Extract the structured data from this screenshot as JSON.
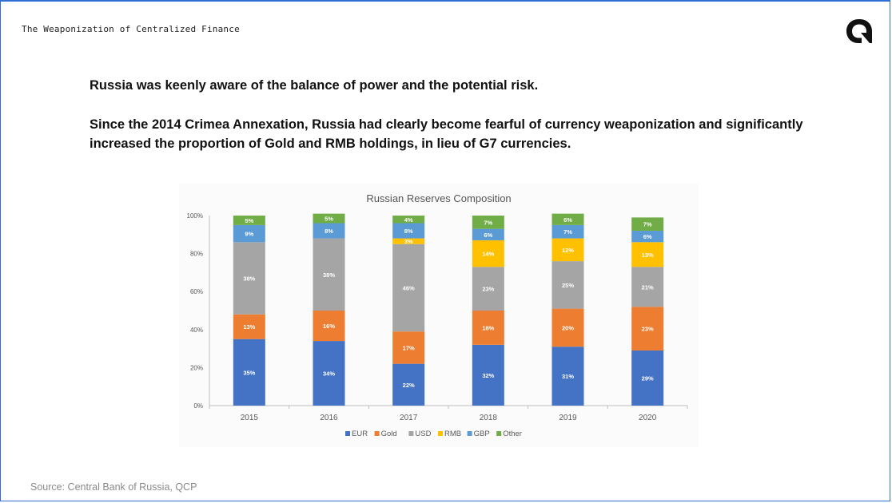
{
  "slide": {
    "deck_title": "The Weaponization of Centralized Finance",
    "headline": "Russia was keenly aware of the balance of power and the potential risk.",
    "subhead": "Since the 2014 Crimea Annexation, Russia had clearly become fearful of currency weaponization and significantly increased the proportion of Gold and RMB holdings, in lieu of G7 currencies.",
    "source": "Source: Central Bank of Russia, QCP",
    "logo_icon": "qcp-logo-icon"
  },
  "chart_data": {
    "type": "bar",
    "stacked": true,
    "title": "Russian Reserves Composition",
    "categories": [
      "2015",
      "2016",
      "2017",
      "2018",
      "2019",
      "2020"
    ],
    "ylim": [
      0,
      100
    ],
    "yticks": [
      "0%",
      "20%",
      "40%",
      "60%",
      "80%",
      "100%"
    ],
    "legend_position": "bottom",
    "grid": false,
    "series": [
      {
        "name": "EUR",
        "color": "#4472c4",
        "values": [
          35,
          34,
          22,
          32,
          31,
          29
        ],
        "labels": [
          "35%",
          "34%",
          "22%",
          "32%",
          "31%",
          "29%"
        ]
      },
      {
        "name": "Gold",
        "color": "#ed7d31",
        "values": [
          13,
          16,
          17,
          18,
          20,
          23
        ],
        "labels": [
          "13%",
          "16%",
          "17%",
          "18%",
          "20%",
          "23%"
        ]
      },
      {
        "name": "USD",
        "color": "#a5a5a5",
        "values": [
          38,
          38,
          46,
          23,
          25,
          21
        ],
        "labels": [
          "38%",
          "38%",
          "46%",
          "23%",
          "25%",
          "21%"
        ]
      },
      {
        "name": "RMB",
        "color": "#ffc000",
        "values": [
          0,
          0,
          3,
          14,
          12,
          13
        ],
        "labels": [
          "",
          "",
          "3%",
          "14%",
          "12%",
          "13%"
        ]
      },
      {
        "name": "GBP",
        "color": "#5b9bd5",
        "values": [
          9,
          8,
          8,
          6,
          7,
          6
        ],
        "labels": [
          "9%",
          "8%",
          "8%",
          "6%",
          "7%",
          "6%"
        ]
      },
      {
        "name": "Other",
        "color": "#70ad47",
        "values": [
          5,
          5,
          4,
          7,
          6,
          7
        ],
        "labels": [
          "5%",
          "5%",
          "4%",
          "7%",
          "6%",
          "7%"
        ]
      }
    ]
  }
}
